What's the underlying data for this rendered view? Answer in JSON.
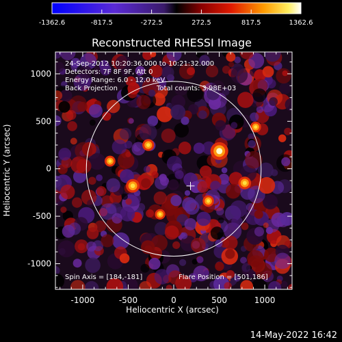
{
  "colorbar": {
    "min": -1362.6,
    "max": 1362.6,
    "tick_labels": [
      "-1362.6",
      "-817.5",
      "-272.5",
      "272.5",
      "817.5",
      "1362.6"
    ]
  },
  "title": "Reconstructed RHESSI Image",
  "info_lines": [
    "24-Sep-2012 10:20:36.000 to 10:21:32.000",
    "Detectors: 7F 8F 9F, Att 0",
    "Energy Range: 6.0 - 12.0 keV",
    "Back Projection"
  ],
  "total_counts": "Total counts: 3.98E+03",
  "spin_axis": "Spin Axis = [184,-181]",
  "flare_position": "Flare Position = [501,186]",
  "timestamp": "14-May-2022 16:42",
  "chart_data": {
    "type": "heatmap",
    "title": "Reconstructed RHESSI Image",
    "xlabel": "Heliocentric X (arcsec)",
    "ylabel": "Heliocentric Y (arcsec)",
    "xlim": [
      -1300,
      1300
    ],
    "ylim": [
      -1270,
      1230
    ],
    "xticks": [
      -1000,
      -500,
      0,
      500,
      1000
    ],
    "yticks": [
      -1000,
      -500,
      0,
      500,
      1000
    ],
    "xtick_labels": [
      "-1000",
      "-500",
      "0",
      "500",
      "1000"
    ],
    "ytick_labels": [
      "-1000",
      "-500",
      "0",
      "500",
      "1000"
    ],
    "colormap": "blue-purple-red-yellow-white",
    "solar_limb_radius": 960,
    "marker": {
      "symbol": "+",
      "x": 184,
      "y": -181
    },
    "peaks": [
      {
        "x": 501,
        "y": 186,
        "value": 1362.6
      },
      {
        "x": -450,
        "y": -180,
        "value": 900
      },
      {
        "x": 780,
        "y": -150,
        "value": 800
      },
      {
        "x": -280,
        "y": 250,
        "value": 700
      },
      {
        "x": 380,
        "y": -340,
        "value": 650
      },
      {
        "x": -700,
        "y": 80,
        "value": 600
      },
      {
        "x": 900,
        "y": 440,
        "value": 600
      },
      {
        "x": -150,
        "y": -480,
        "value": 550
      }
    ]
  }
}
